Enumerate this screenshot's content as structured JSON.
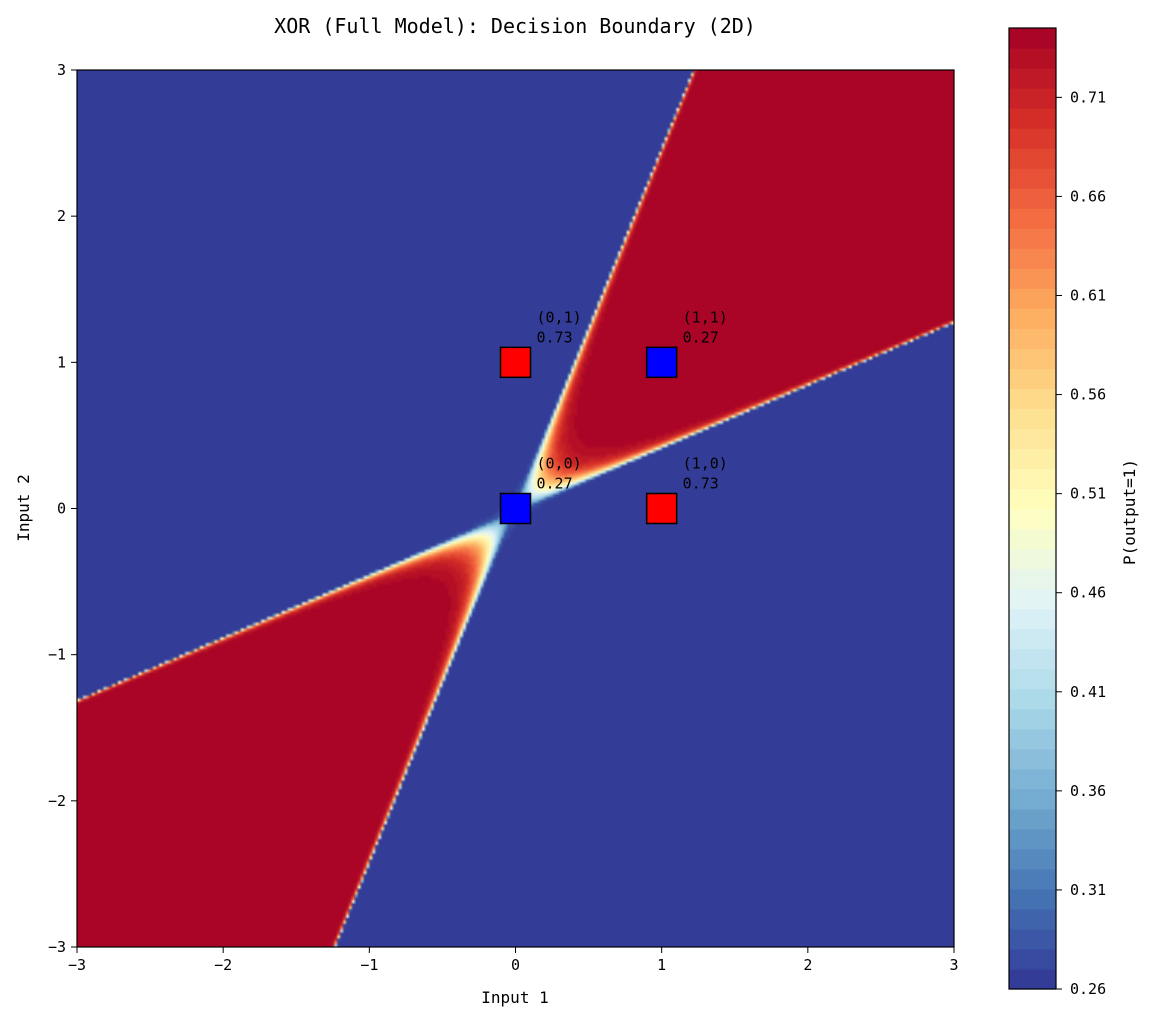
{
  "chart_data": {
    "type": "heatmap",
    "title": "XOR (Full Model): Decision Boundary (2D)",
    "xlabel": "Input 1",
    "ylabel": "Input 2",
    "xlim": [
      -3,
      3
    ],
    "ylim": [
      -3,
      3
    ],
    "xticks": [
      -3,
      -2,
      -1,
      0,
      1,
      2,
      3
    ],
    "yticks": [
      -3,
      -2,
      -1,
      0,
      1,
      2,
      3
    ],
    "xtick_labels": [
      "−3",
      "−2",
      "−1",
      "0",
      "1",
      "2",
      "3"
    ],
    "ytick_labels": [
      "−3",
      "−2",
      "−1",
      "0",
      "1",
      "2",
      "3"
    ],
    "colorbar": {
      "label": "P(output=1)",
      "range": [
        0.26,
        0.745
      ],
      "ticks": [
        0.26,
        0.31,
        0.36,
        0.41,
        0.46,
        0.51,
        0.56,
        0.61,
        0.66,
        0.71
      ],
      "tick_labels": [
        "0.26",
        "0.31",
        "0.36",
        "0.41",
        "0.46",
        "0.51",
        "0.56",
        "0.61",
        "0.66",
        "0.71"
      ],
      "levels": 48,
      "colormap": "RdYlBu_r"
    },
    "region_colors": {
      "low": "#4a52a5",
      "high": "#b11b3b"
    },
    "points": [
      {
        "x": 0,
        "y": 0,
        "label": "(0,0)",
        "value": "0.27",
        "class": 0,
        "color": "#0000ff"
      },
      {
        "x": 0,
        "y": 1,
        "label": "(0,1)",
        "value": "0.73",
        "class": 1,
        "color": "#ff0000"
      },
      {
        "x": 1,
        "y": 0,
        "label": "(1,0)",
        "value": "0.73",
        "class": 1,
        "color": "#ff0000"
      },
      {
        "x": 1,
        "y": 1,
        "label": "(1,1)",
        "value": "0.27",
        "class": 0,
        "color": "#0000ff"
      }
    ]
  }
}
